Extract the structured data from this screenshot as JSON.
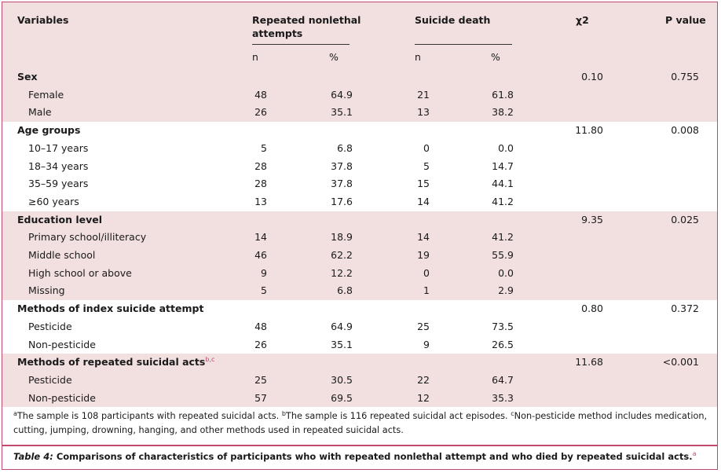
{
  "header": {
    "variables": "Variables",
    "repeated": "Repeated nonlethal attempts",
    "suicide": "Suicide death",
    "chi2": "χ2",
    "pvalue": "P value",
    "n1": "n",
    "pct1": "%",
    "n2": "n",
    "pct2": "%"
  },
  "rows": [
    {
      "label": "Sex",
      "type": "head",
      "chi2": "0.10",
      "p": "0.755",
      "shade": "pink"
    },
    {
      "label": "Female",
      "type": "item",
      "rn": "48",
      "rp": "64.9",
      "sn": "21",
      "sp": "61.8",
      "shade": "pink"
    },
    {
      "label": "Male",
      "type": "item",
      "rn": "26",
      "rp": "35.1",
      "sn": "13",
      "sp": "38.2",
      "shade": "pink"
    },
    {
      "label": "Age groups",
      "type": "head",
      "chi2": "11.80",
      "p": "0.008",
      "shade": "white"
    },
    {
      "label": "10–17 years",
      "type": "item",
      "rn": "5",
      "rp": "6.8",
      "sn": "0",
      "sp": "0.0",
      "shade": "white"
    },
    {
      "label": "18–34 years",
      "type": "item",
      "rn": "28",
      "rp": "37.8",
      "sn": "5",
      "sp": "14.7",
      "shade": "white"
    },
    {
      "label": "35–59 years",
      "type": "item",
      "rn": "28",
      "rp": "37.8",
      "sn": "15",
      "sp": "44.1",
      "shade": "white"
    },
    {
      "label": "≥60 years",
      "type": "item",
      "rn": "13",
      "rp": "17.6",
      "sn": "14",
      "sp": "41.2",
      "shade": "white"
    },
    {
      "label": "Education level",
      "type": "head",
      "chi2": "9.35",
      "p": "0.025",
      "shade": "pink"
    },
    {
      "label": "Primary school/illiteracy",
      "type": "item",
      "rn": "14",
      "rp": "18.9",
      "sn": "14",
      "sp": "41.2",
      "shade": "pink"
    },
    {
      "label": "Middle school",
      "type": "item",
      "rn": "46",
      "rp": "62.2",
      "sn": "19",
      "sp": "55.9",
      "shade": "pink"
    },
    {
      "label": "High school or above",
      "type": "item",
      "rn": "9",
      "rp": "12.2",
      "sn": "0",
      "sp": "0.0",
      "shade": "pink"
    },
    {
      "label": "Missing",
      "type": "item",
      "rn": "5",
      "rp": "6.8",
      "sn": "1",
      "sp": "2.9",
      "shade": "pink"
    },
    {
      "label": "Methods of index suicide attempt",
      "type": "head",
      "chi2": "0.80",
      "p": "0.372",
      "shade": "white"
    },
    {
      "label": "Pesticide",
      "type": "item",
      "rn": "48",
      "rp": "64.9",
      "sn": "25",
      "sp": "73.5",
      "shade": "white"
    },
    {
      "label": "Non-pesticide",
      "type": "item",
      "rn": "26",
      "rp": "35.1",
      "sn": "9",
      "sp": "26.5",
      "shade": "white"
    },
    {
      "label": "Methods of repeated suicidal acts",
      "sup": "b,c",
      "type": "head",
      "chi2": "11.68",
      "p": "<0.001",
      "shade": "pink"
    },
    {
      "label": "Pesticide",
      "type": "item",
      "rn": "25",
      "rp": "30.5",
      "sn": "22",
      "sp": "64.7",
      "shade": "pink"
    },
    {
      "label": "Non-pesticide",
      "type": "item",
      "rn": "57",
      "rp": "69.5",
      "sn": "12",
      "sp": "35.3",
      "shade": "pink"
    }
  ],
  "footnotes": {
    "a_sup": "a",
    "a_text": "The sample is 108 participants with repeated suicidal acts. ",
    "b_sup": "b",
    "b_text": "The sample is 116 repeated suicidal act episodes. ",
    "c_sup": "c",
    "c_text": "Non-pesticide method includes medication, cutting, jumping, drowning, hanging, and other methods used in repeated suicidal acts."
  },
  "caption": {
    "label": "Table 4:",
    "text": " Comparisons of characteristics of participants who with repeated nonlethal attempt and who died by repeated suicidal acts.",
    "sup": "a"
  }
}
